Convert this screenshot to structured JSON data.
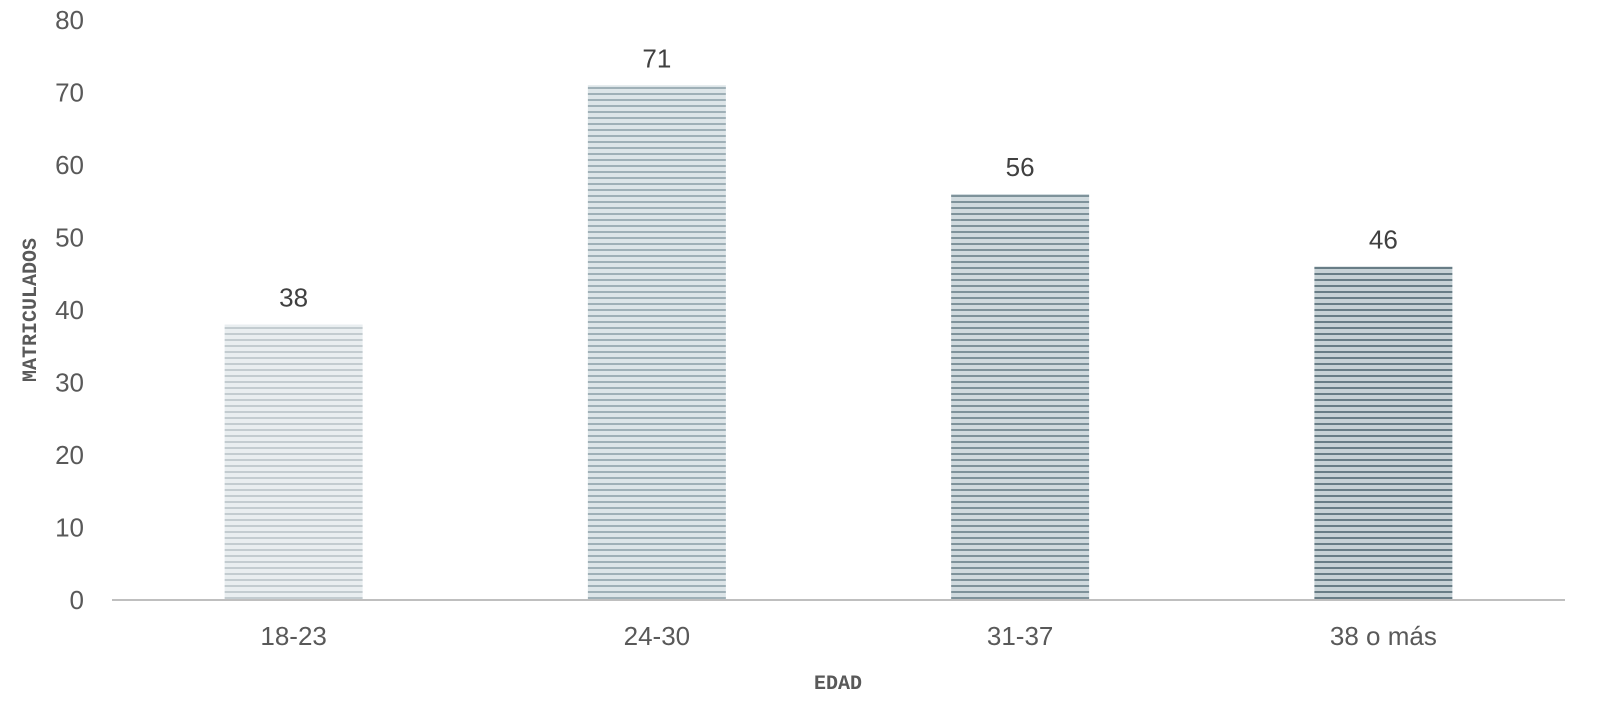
{
  "chart_data": {
    "type": "bar",
    "categories": [
      "18-23",
      "24-30",
      "31-37",
      "38 o más"
    ],
    "values": [
      38,
      71,
      56,
      46
    ],
    "data_labels": [
      "38",
      "71",
      "56",
      "46"
    ],
    "xlabel": "EDAD",
    "ylabel": "MATRICULADOS",
    "ylim": [
      0,
      80
    ],
    "yticks": [
      "0",
      "10",
      "20",
      "30",
      "40",
      "50",
      "60",
      "70",
      "80"
    ],
    "grid": false,
    "legend": "none",
    "bar_colors": [
      {
        "light": "#e9eef0",
        "dark": "#c3ccd0"
      },
      {
        "light": "#dde5e8",
        "dark": "#9fb0b7"
      },
      {
        "light": "#d0dade",
        "dark": "#7e929a"
      },
      {
        "light": "#c7d2d6",
        "dark": "#687d86"
      }
    ],
    "axis_color": "#bfbfbf"
  }
}
